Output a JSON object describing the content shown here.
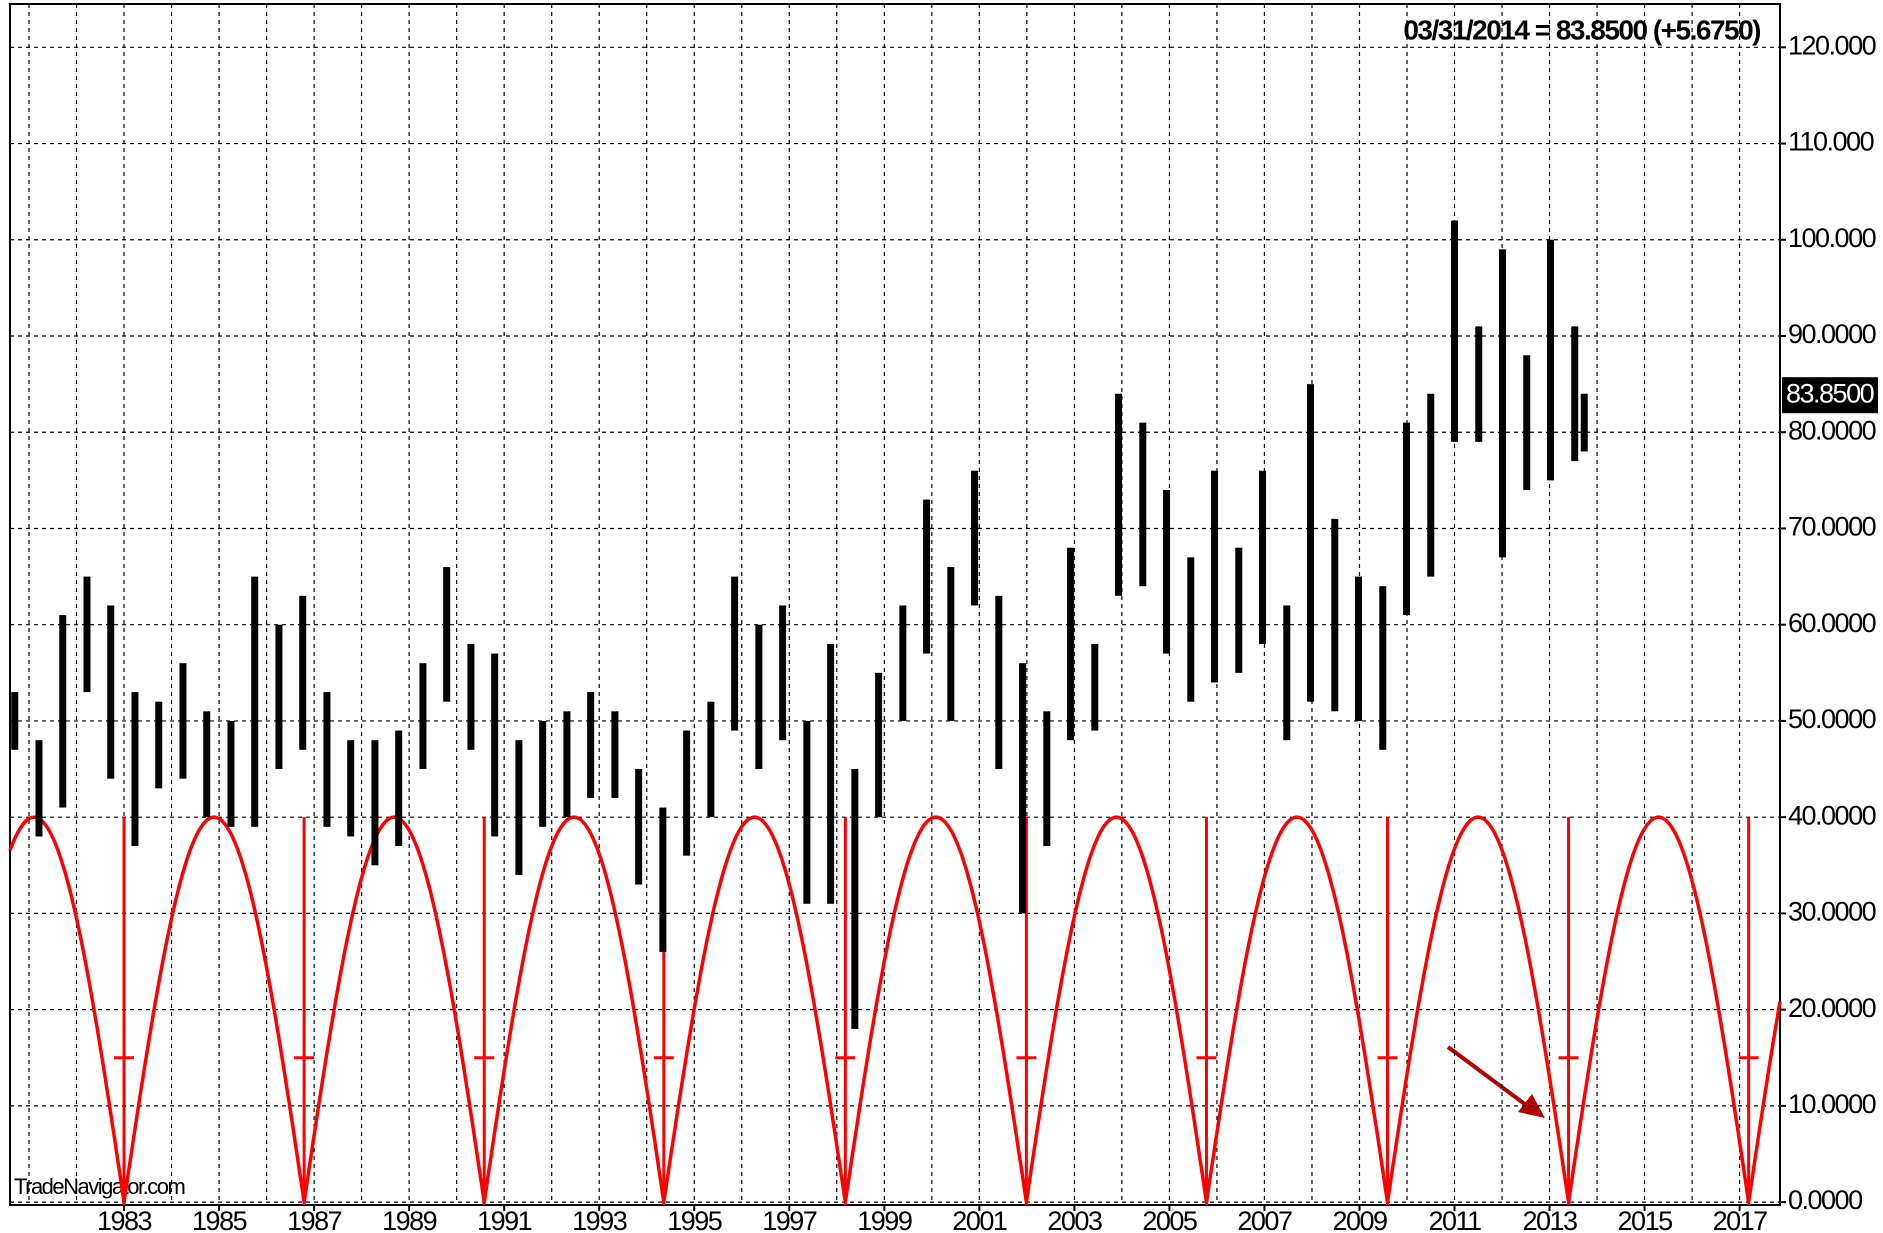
{
  "chart_data": {
    "type": "range-bar",
    "header": "03/31/2014 = 83.8500 (+5.6750)",
    "watermark": "TradeNavigator.com",
    "last": {
      "value": 83.85,
      "label": "83.8500"
    },
    "bar_color": "#000000",
    "x": [
      1980.7,
      1981.21,
      1981.71,
      1982.22,
      1982.72,
      1983.23,
      1983.73,
      1984.24,
      1984.74,
      1985.25,
      1985.75,
      1986.26,
      1986.76,
      1987.27,
      1987.77,
      1988.28,
      1988.78,
      1989.29,
      1989.79,
      1990.3,
      1990.8,
      1991.31,
      1991.81,
      1992.32,
      1992.82,
      1993.33,
      1993.83,
      1994.34,
      1994.84,
      1995.35,
      1995.85,
      1996.36,
      1996.86,
      1997.37,
      1997.87,
      1998.38,
      1998.88,
      1999.39,
      1999.89,
      2000.4,
      2000.9,
      2001.41,
      2001.91,
      2002.42,
      2002.92,
      2003.43,
      2003.93,
      2004.44,
      2004.94,
      2005.45,
      2005.95,
      2006.46,
      2006.96,
      2007.47,
      2007.97,
      2008.48,
      2008.98,
      2009.49,
      2009.99,
      2010.5,
      2011.0,
      2011.51,
      2012.01,
      2012.52,
      2013.02,
      2013.53,
      2013.73
    ],
    "high": [
      53,
      48,
      61,
      65,
      62,
      53,
      52,
      56,
      51,
      50,
      65,
      60,
      63,
      53,
      48,
      48,
      49,
      56,
      66,
      58,
      57,
      48,
      50,
      51,
      53,
      51,
      45,
      41,
      49,
      52,
      65,
      60,
      62,
      50,
      58,
      45,
      55,
      62,
      73,
      66,
      76,
      63,
      56,
      51,
      68,
      58,
      84,
      81,
      74,
      67,
      76,
      68,
      76,
      62,
      85,
      71,
      65,
      64,
      81,
      84,
      102,
      91,
      99,
      88,
      100,
      91,
      84
    ],
    "low": [
      47,
      38,
      41,
      53,
      44,
      37,
      43,
      44,
      40,
      39,
      39,
      45,
      47,
      39,
      38,
      35,
      37,
      45,
      52,
      47,
      38,
      34,
      39,
      40,
      42,
      42,
      33,
      26,
      36,
      40,
      49,
      45,
      48,
      31,
      31,
      18,
      40,
      50,
      57,
      50,
      62,
      45,
      30,
      37,
      48,
      49,
      63,
      64,
      57,
      52,
      54,
      55,
      58,
      48,
      52,
      51,
      50,
      47,
      61,
      65,
      79,
      79,
      67,
      74,
      75,
      77,
      78
    ],
    "cycle": {
      "lows": [
        1983.0,
        1986.79,
        1990.58,
        1994.36,
        1998.18,
        2001.99,
        2005.78,
        2009.59,
        2013.4,
        2017.19
      ],
      "peak": 40,
      "color": "#ff0000"
    },
    "xlim": [
      1980.6,
      2017.85
    ],
    "xticks": [
      1983,
      1985,
      1987,
      1989,
      1991,
      1993,
      1995,
      1997,
      1999,
      2001,
      2003,
      2005,
      2007,
      2009,
      2011,
      2013,
      2015,
      2017
    ],
    "x_minor_grid": [
      1981,
      1982,
      1984,
      1986,
      1988,
      1990,
      1992,
      1994,
      1996,
      1998,
      2000,
      2002,
      2004,
      2006,
      2008,
      2010,
      2012,
      2014,
      2016
    ],
    "ylim": [
      -0.3,
      124.5
    ],
    "yticks": [
      {
        "value": 0,
        "label": "0.0000"
      },
      {
        "value": 10,
        "label": "10.0000"
      },
      {
        "value": 20,
        "label": "20.0000"
      },
      {
        "value": 30,
        "label": "30.0000"
      },
      {
        "value": 40,
        "label": "40.0000"
      },
      {
        "value": 50,
        "label": "50.0000"
      },
      {
        "value": 60,
        "label": "60.0000"
      },
      {
        "value": 70,
        "label": "70.0000"
      },
      {
        "value": 80,
        "label": "80.0000"
      },
      {
        "value": 90,
        "label": "90.0000"
      },
      {
        "value": 100,
        "label": "100.000"
      },
      {
        "value": 110,
        "label": "110.000"
      },
      {
        "value": 120,
        "label": "120.000"
      }
    ],
    "grid": true
  }
}
